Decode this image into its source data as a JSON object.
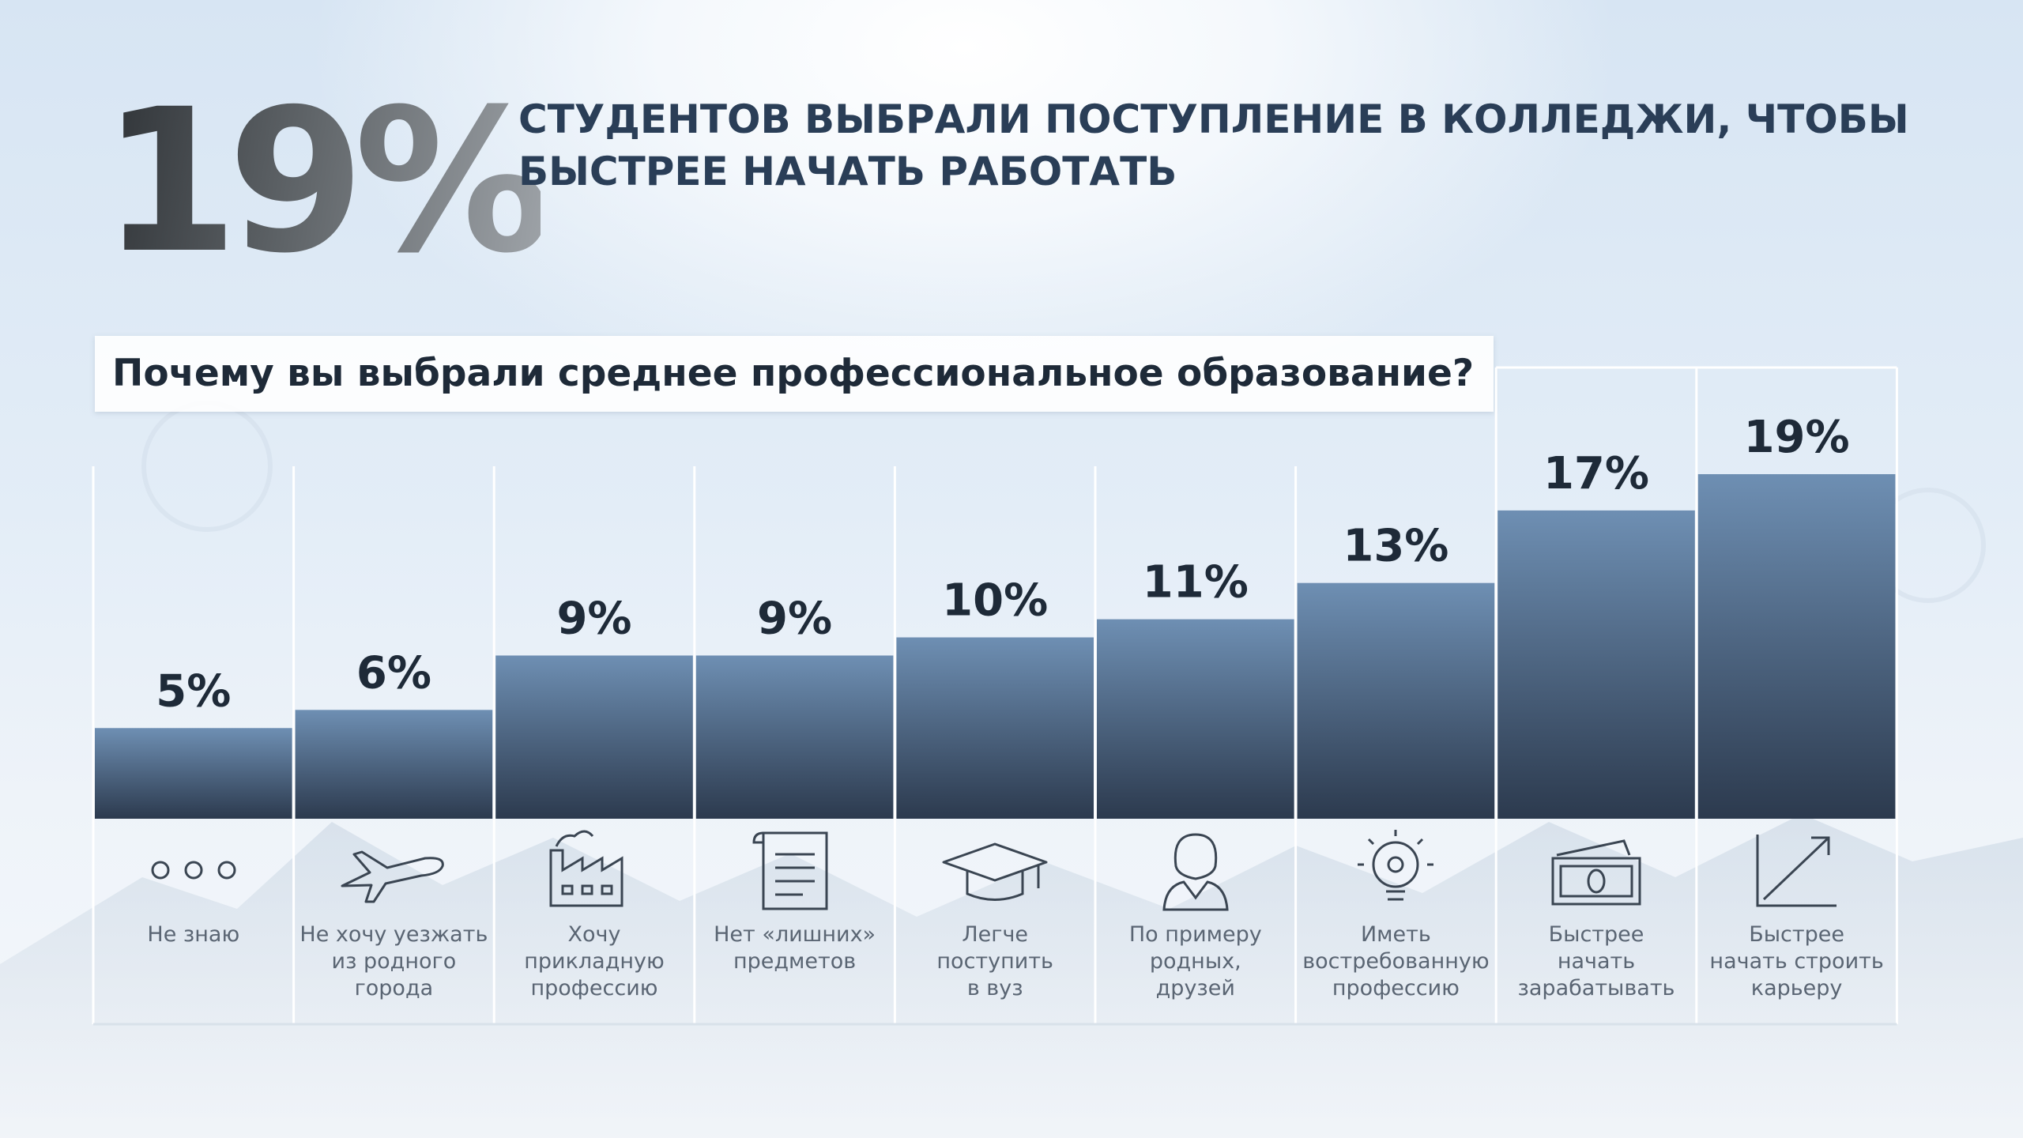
{
  "header": {
    "big_number": "19%",
    "headline_line1": "СТУДЕНТОВ ВЫБРАЛИ ПОСТУПЛЕНИЕ В КОЛЛЕДЖИ, ЧТОБЫ",
    "headline_line2": "БЫСТРЕЕ НАЧАТЬ РАБОТАТЬ"
  },
  "chart_data": {
    "type": "bar",
    "title": "Почему вы выбрали среднее профессиональное образование?",
    "categories": [
      "Не знаю",
      "Не хочу уезжать\nиз родного\nгорода",
      "Хочу\nприкладную\nпрофессию",
      "Нет «лишних»\nпредметов",
      "Легче\nпоступить\nв вуз",
      "По примеру\nродных,\nдрузей",
      "Иметь\nвостребованную\nпрофессию",
      "Быстрее\nначать\nзарабатывать",
      "Быстрее\nначать строить\nкарьеру"
    ],
    "values": [
      5,
      6,
      9,
      9,
      10,
      11,
      13,
      17,
      19
    ],
    "value_labels": [
      "5%",
      "6%",
      "9%",
      "9%",
      "10%",
      "11%",
      "13%",
      "17%",
      "19%"
    ],
    "icons": [
      "dots-icon",
      "airplane-icon",
      "factory-icon",
      "document-list-icon",
      "graduation-cap-icon",
      "woman-icon",
      "lightbulb-gear-icon",
      "money-icon",
      "growth-arrow-icon"
    ],
    "xlabel": "",
    "ylabel": "",
    "ylim": [
      0,
      19
    ],
    "grid": false,
    "colors": {
      "bar_top": "#6e8fb3",
      "bar_bottom": "#2c3a4e",
      "value_text": "#1e2a38"
    }
  }
}
